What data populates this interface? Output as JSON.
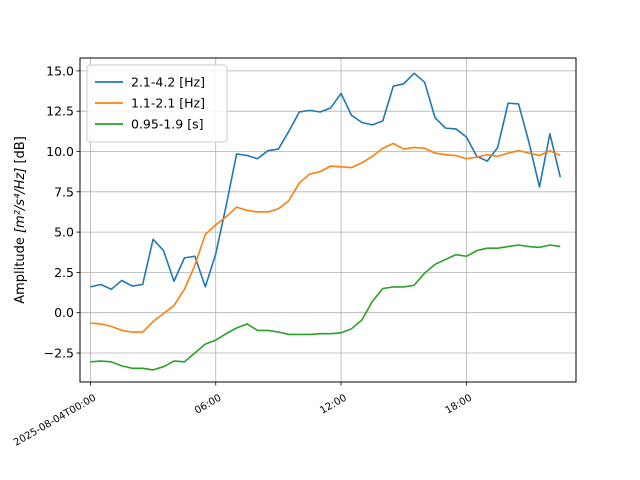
{
  "chart_data": {
    "type": "line",
    "title": "",
    "xlabel": "",
    "ylabel": "Amplitude [m²/s⁴/Hz] [dB]",
    "ylabel_parts": {
      "prefix": "Amplitude ",
      "math": "[m²/s⁴/Hz]",
      "suffix": " [dB]"
    },
    "xlim_hours": [
      -0.5,
      23.25
    ],
    "ylim": [
      -4.3,
      15.8
    ],
    "x_ticks": [
      {
        "hour": 0,
        "label": "2025-08-04T00:00"
      },
      {
        "hour": 6,
        "label": "06:00"
      },
      {
        "hour": 12,
        "label": "12:00"
      },
      {
        "hour": 18,
        "label": "18:00"
      }
    ],
    "y_ticks": [
      {
        "value": -2.5,
        "label": "−2.5"
      },
      {
        "value": 0.0,
        "label": "0.0"
      },
      {
        "value": 2.5,
        "label": "2.5"
      },
      {
        "value": 5.0,
        "label": "5.0"
      },
      {
        "value": 7.5,
        "label": "7.5"
      },
      {
        "value": 10.0,
        "label": "10.0"
      },
      {
        "value": 12.5,
        "label": "12.5"
      },
      {
        "value": 15.0,
        "label": "15.0"
      }
    ],
    "grid": true,
    "legend_position": "top-left",
    "x_hours": [
      0,
      0.5,
      1,
      1.5,
      2,
      2.5,
      3,
      3.5,
      4,
      4.5,
      5,
      5.5,
      6,
      6.5,
      7,
      7.5,
      8,
      8.5,
      9,
      9.5,
      10,
      10.5,
      11,
      11.5,
      12,
      12.5,
      13,
      13.5,
      14,
      14.5,
      15,
      15.5,
      16,
      16.5,
      17,
      17.5,
      18,
      18.5,
      19,
      19.5,
      20,
      20.5,
      21,
      21.5,
      22,
      22.5
    ],
    "series": [
      {
        "name": "2.1-4.2 [Hz]",
        "color": "#1f77b4",
        "values": [
          1.6,
          1.75,
          1.45,
          2.0,
          1.65,
          1.75,
          4.55,
          3.85,
          1.95,
          3.4,
          3.5,
          1.6,
          3.65,
          6.65,
          9.85,
          9.75,
          9.55,
          10.05,
          10.15,
          11.25,
          12.45,
          12.55,
          12.45,
          12.7,
          13.6,
          12.25,
          11.8,
          11.65,
          11.9,
          14.05,
          14.2,
          14.85,
          14.3,
          12.1,
          11.45,
          11.4,
          10.9,
          9.7,
          9.4,
          10.25,
          13.0,
          12.95,
          10.55,
          7.8,
          11.1,
          8.4
        ]
      },
      {
        "name": "1.1-2.1 [Hz]",
        "color": "#ff7f0e",
        "values": [
          -0.65,
          -0.7,
          -0.85,
          -1.1,
          -1.2,
          -1.2,
          -0.55,
          -0.05,
          0.45,
          1.45,
          2.95,
          4.85,
          5.45,
          5.95,
          6.55,
          6.35,
          6.25,
          6.25,
          6.45,
          6.95,
          8.05,
          8.6,
          8.75,
          9.1,
          9.05,
          9.0,
          9.3,
          9.7,
          10.2,
          10.5,
          10.15,
          10.25,
          10.2,
          9.9,
          9.8,
          9.75,
          9.55,
          9.65,
          9.8,
          9.7,
          9.9,
          10.05,
          9.9,
          9.75,
          10.05,
          9.75
        ]
      },
      {
        "name": "0.95-1.9 [s]",
        "color": "#2ca02c",
        "values": [
          -3.05,
          -3.0,
          -3.05,
          -3.3,
          -3.45,
          -3.45,
          -3.55,
          -3.35,
          -3.0,
          -3.05,
          -2.5,
          -1.95,
          -1.7,
          -1.3,
          -0.95,
          -0.7,
          -1.1,
          -1.1,
          -1.2,
          -1.35,
          -1.35,
          -1.35,
          -1.3,
          -1.3,
          -1.25,
          -1.0,
          -0.45,
          0.7,
          1.5,
          1.6,
          1.6,
          1.7,
          2.45,
          3.0,
          3.3,
          3.6,
          3.5,
          3.85,
          4.0,
          4.0,
          4.1,
          4.2,
          4.1,
          4.05,
          4.2,
          4.1
        ]
      }
    ]
  }
}
